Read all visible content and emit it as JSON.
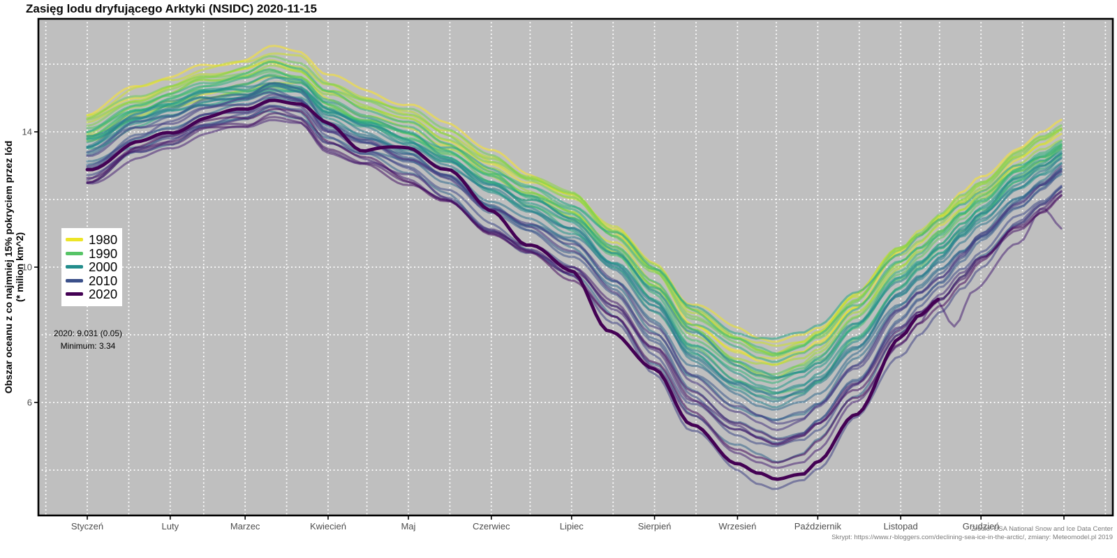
{
  "title": "Zasięg lodu dryfującego Arktyki (NSIDC) 2020-11-15",
  "axes": {
    "y_label_line1": "Obszar oceanu z co najmniej 15% pokryciem przez lód",
    "y_label_line2": "(* milion km^2)",
    "y_ticks": [
      14,
      10,
      6
    ],
    "x_ticks": [
      "Styczeń",
      "Luty",
      "Marzec",
      "Kwiecień",
      "Maj",
      "Czerwiec",
      "Lipiec",
      "Sierpień",
      "Wrzesień",
      "Październik",
      "Listopad",
      "Grudzień"
    ]
  },
  "legend": {
    "years": [
      1980,
      1990,
      2000,
      2010,
      2020
    ]
  },
  "annotation": {
    "line1": "2020: 9.031 (0.05)",
    "line2": "Minimum: 3.34"
  },
  "source": {
    "line1": "Źródło: USA National Snow and Ice Data Center",
    "line2": "Skrypt: https://www.r-bloggers.com/declining-sea-ice-in-the-arctic/, zmiany: Meteomodel.pl 2019"
  },
  "chart_data": {
    "type": "line",
    "title": "Zasięg lodu dryfującego Arktyki (NSIDC) 2020-11-15",
    "xlabel": "",
    "ylabel": "Obszar oceanu z co najmniej 15% pokryciem przez lód (* milion km^2)",
    "x_unit": "day_of_year",
    "ylim": [
      2.7,
      17.3
    ],
    "y_gridlines": [
      4,
      6,
      8,
      10,
      12,
      14,
      16
    ],
    "month_start_days": [
      1,
      32,
      60,
      91,
      121,
      152,
      182,
      213,
      244,
      274,
      305,
      335,
      366
    ],
    "legend_position": "left-inside",
    "grid": "white-dotted-on-grey",
    "series": [
      {
        "year": 1979,
        "max": 16.45,
        "min": 7.15
      },
      {
        "year": 1980,
        "max": 16.05,
        "min": 7.8
      },
      {
        "year": 1981,
        "max": 15.65,
        "min": 7.25
      },
      {
        "year": 1982,
        "max": 16.2,
        "min": 7.45
      },
      {
        "year": 1983,
        "max": 16.05,
        "min": 7.5
      },
      {
        "year": 1984,
        "max": 15.55,
        "min": 7.15
      },
      {
        "year": 1985,
        "max": 16.0,
        "min": 6.9
      },
      {
        "year": 1986,
        "max": 15.9,
        "min": 7.5
      },
      {
        "year": 1987,
        "max": 15.95,
        "min": 7.45
      },
      {
        "year": 1988,
        "max": 16.2,
        "min": 7.45
      },
      {
        "year": 1989,
        "max": 15.55,
        "min": 7.0
      },
      {
        "year": 1990,
        "max": 15.9,
        "min": 6.25
      },
      {
        "year": 1991,
        "max": 15.55,
        "min": 6.55
      },
      {
        "year": 1992,
        "max": 15.5,
        "min": 7.55
      },
      {
        "year": 1993,
        "max": 15.9,
        "min": 6.5
      },
      {
        "year": 1994,
        "max": 15.7,
        "min": 7.15
      },
      {
        "year": 1995,
        "max": 15.3,
        "min": 6.1
      },
      {
        "year": 1996,
        "max": 15.25,
        "min": 7.85
      },
      {
        "year": 1997,
        "max": 15.5,
        "min": 6.75
      },
      {
        "year": 1998,
        "max": 15.7,
        "min": 6.55
      },
      {
        "year": 1999,
        "max": 15.6,
        "min": 6.25
      },
      {
        "year": 2000,
        "max": 15.3,
        "min": 6.3
      },
      {
        "year": 2001,
        "max": 15.6,
        "min": 6.75
      },
      {
        "year": 2002,
        "max": 15.45,
        "min": 5.95
      },
      {
        "year": 2003,
        "max": 15.5,
        "min": 6.15
      },
      {
        "year": 2004,
        "max": 15.25,
        "min": 6.05
      },
      {
        "year": 2005,
        "max": 15.1,
        "min": 5.55
      },
      {
        "year": 2006,
        "max": 14.7,
        "min": 5.9
      },
      {
        "year": 2007,
        "max": 14.7,
        "min": 4.3
      },
      {
        "year": 2008,
        "max": 15.25,
        "min": 4.7
      },
      {
        "year": 2009,
        "max": 15.15,
        "min": 5.35
      },
      {
        "year": 2010,
        "max": 15.1,
        "min": 4.9
      },
      {
        "year": 2011,
        "max": 14.7,
        "min": 4.6
      },
      {
        "year": 2012,
        "max": 15.2,
        "min": 3.39
      },
      {
        "year": 2013,
        "max": 15.1,
        "min": 5.35
      },
      {
        "year": 2014,
        "max": 14.9,
        "min": 5.3
      },
      {
        "year": 2015,
        "max": 14.5,
        "min": 4.65
      },
      {
        "year": 2016,
        "max": 14.5,
        "min": 4.15
      },
      {
        "year": 2017,
        "max": 14.4,
        "min": 4.8
      },
      {
        "year": 2018,
        "max": 14.45,
        "min": 4.65
      },
      {
        "year": 2019,
        "max": 14.75,
        "min": 4.2
      },
      {
        "year": 2020,
        "max": 15.05,
        "min": 3.77,
        "end_day": 320,
        "end_value": 9.031,
        "highlight": true
      }
    ],
    "shape": [
      [
        1,
        0.8
      ],
      [
        20,
        0.885
      ],
      [
        32,
        0.915
      ],
      [
        45,
        0.955
      ],
      [
        60,
        0.97
      ],
      [
        70,
        1.0
      ],
      [
        80,
        0.985
      ],
      [
        91,
        0.905
      ],
      [
        105,
        0.86
      ],
      [
        121,
        0.81
      ],
      [
        135,
        0.75
      ],
      [
        152,
        0.66
      ],
      [
        166,
        0.6
      ],
      [
        182,
        0.536
      ],
      [
        198,
        0.42
      ],
      [
        213,
        0.29
      ],
      [
        227,
        0.14
      ],
      [
        244,
        0.045
      ],
      [
        252,
        0.015
      ],
      [
        258,
        0.0
      ],
      [
        268,
        0.025
      ],
      [
        274,
        0.06
      ],
      [
        288,
        0.18
      ],
      [
        305,
        0.345
      ],
      [
        312,
        0.4
      ],
      [
        320,
        0.455
      ],
      [
        328,
        0.52
      ],
      [
        335,
        0.575
      ],
      [
        349,
        0.675
      ],
      [
        358,
        0.725
      ],
      [
        366,
        0.77
      ]
    ],
    "anchors": {
      "2016": [
        [
          305,
          0.345
        ],
        [
          318,
          0.47
        ],
        [
          325,
          0.4
        ],
        [
          332,
          0.5
        ],
        [
          349,
          0.62
        ],
        [
          366,
          0.66
        ]
      ],
      "2020": [
        [
          91,
          0.94
        ],
        [
          121,
          0.86
        ],
        [
          135,
          0.8
        ],
        [
          152,
          0.7
        ],
        [
          196,
          0.375
        ],
        [
          213,
          0.295
        ],
        [
          288,
          0.17
        ],
        [
          305,
          0.37
        ],
        [
          312,
          0.42
        ],
        [
          320,
          0.466
        ]
      ]
    },
    "viridis_ramp": [
      "#440154",
      "#482878",
      "#3e4a89",
      "#31688e",
      "#26828e",
      "#1f9e89",
      "#35b779",
      "#6dcd59",
      "#b4de2c",
      "#fde725"
    ],
    "year_range_for_color": [
      1979,
      2020
    ],
    "style": {
      "panel_bg": "#bfbfbf",
      "grid_color": "#ffffff",
      "border_color": "#000000",
      "axis_text_color": "#4d4d4d",
      "line_alpha": 0.55,
      "line_width": 3,
      "highlight_width": 4.8,
      "highlight_color": "#440154"
    }
  }
}
